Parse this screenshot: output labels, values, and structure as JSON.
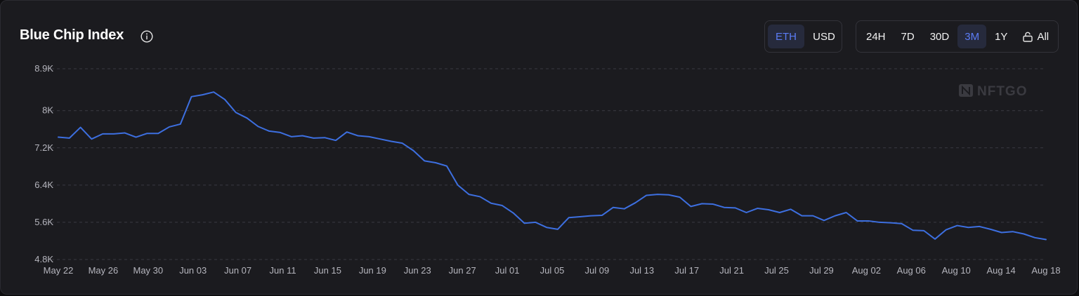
{
  "header": {
    "title": "Blue Chip Index",
    "currency_options": [
      "ETH",
      "USD"
    ],
    "currency_selected": "ETH",
    "range_options": [
      "24H",
      "7D",
      "30D",
      "3M",
      "1Y",
      "All"
    ],
    "range_selected": "3M"
  },
  "watermark": "NFTGO",
  "colors": {
    "line": "#3d6fe0",
    "accent": "#5b7cf5",
    "grid": "#3a3a42",
    "background": "#1b1b1f"
  },
  "chart_data": {
    "type": "line",
    "title": "",
    "xlabel": "",
    "ylabel": "",
    "ylim": [
      4800,
      8900
    ],
    "y_ticks": [
      4800,
      5600,
      6400,
      7200,
      8000,
      8900
    ],
    "y_tick_labels": [
      "4.8K",
      "5.6K",
      "6.4K",
      "7.2K",
      "8K",
      "8.9K"
    ],
    "x_tick_labels": [
      "May 22",
      "May 26",
      "May 30",
      "Jun 03",
      "Jun 07",
      "Jun 11",
      "Jun 15",
      "Jun 19",
      "Jun 23",
      "Jun 27",
      "Jul 01",
      "Jul 05",
      "Jul 09",
      "Jul 13",
      "Jul 17",
      "Jul 21",
      "Jul 25",
      "Jul 29",
      "Aug 02",
      "Aug 06",
      "Aug 10",
      "Aug 14",
      "Aug 18"
    ],
    "grid": true,
    "series": [
      {
        "name": "",
        "values": [
          7430,
          7410,
          7640,
          7390,
          7500,
          7500,
          7520,
          7430,
          7510,
          7510,
          7650,
          7710,
          8300,
          8340,
          8400,
          8240,
          7960,
          7840,
          7660,
          7560,
          7530,
          7440,
          7460,
          7410,
          7420,
          7360,
          7540,
          7460,
          7440,
          7390,
          7340,
          7300,
          7140,
          6920,
          6880,
          6810,
          6400,
          6200,
          6150,
          6010,
          5960,
          5800,
          5580,
          5600,
          5490,
          5450,
          5700,
          5720,
          5740,
          5750,
          5920,
          5890,
          6020,
          6180,
          6200,
          6190,
          6140,
          5940,
          6000,
          5990,
          5920,
          5910,
          5810,
          5900,
          5870,
          5810,
          5880,
          5740,
          5740,
          5640,
          5740,
          5810,
          5630,
          5630,
          5600,
          5590,
          5570,
          5430,
          5420,
          5240,
          5440,
          5530,
          5490,
          5510,
          5450,
          5380,
          5400,
          5350,
          5270,
          5230
        ]
      }
    ]
  }
}
